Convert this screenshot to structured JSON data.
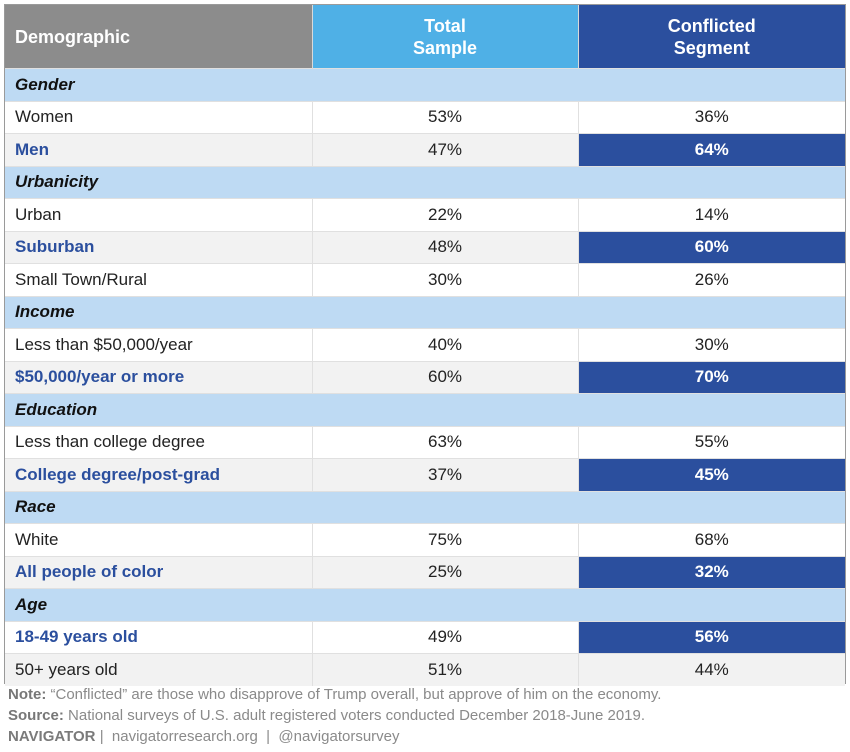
{
  "header": {
    "col1": "Demographic",
    "col2": "Total\nSample",
    "col3": "Conflicted\nSegment"
  },
  "groups": [
    {
      "category": "Gender",
      "rows": [
        {
          "label": "Women",
          "total": "53%",
          "conflicted": "36%",
          "highlight": false
        },
        {
          "label": "Men",
          "total": "47%",
          "conflicted": "64%",
          "highlight": true
        }
      ]
    },
    {
      "category": "Urbanicity",
      "rows": [
        {
          "label": "Urban",
          "total": "22%",
          "conflicted": "14%",
          "highlight": false
        },
        {
          "label": "Suburban",
          "total": "48%",
          "conflicted": "60%",
          "highlight": true
        },
        {
          "label": "Small Town/Rural",
          "total": "30%",
          "conflicted": "26%",
          "highlight": false
        }
      ]
    },
    {
      "category": "Income",
      "rows": [
        {
          "label": "Less than $50,000/year",
          "total": "40%",
          "conflicted": "30%",
          "highlight": false
        },
        {
          "label": "$50,000/year or more",
          "total": "60%",
          "conflicted": "70%",
          "highlight": true
        }
      ]
    },
    {
      "category": "Education",
      "rows": [
        {
          "label": "Less than college degree",
          "total": "63%",
          "conflicted": "55%",
          "highlight": false
        },
        {
          "label": "College degree/post-grad",
          "total": "37%",
          "conflicted": "45%",
          "highlight": true
        }
      ]
    },
    {
      "category": "Race",
      "rows": [
        {
          "label": "White",
          "total": "75%",
          "conflicted": "68%",
          "highlight": false
        },
        {
          "label": "All people of color",
          "total": "25%",
          "conflicted": "32%",
          "highlight": true
        }
      ]
    },
    {
      "category": "Age",
      "rows": [
        {
          "label": "18-49 years old",
          "total": "49%",
          "conflicted": "56%",
          "highlight": true
        },
        {
          "label": "50+ years old",
          "total": "51%",
          "conflicted": "44%",
          "highlight": false
        }
      ]
    }
  ],
  "footer": {
    "note_label": "Note:",
    "note_text": "“Conflicted” are those who disapprove of Trump overall, but approve of him on the economy.",
    "source_label": "Source:",
    "source_text": "National surveys of U.S. adult registered voters conducted December 2018-June 2019.",
    "brand": "NAVIGATOR",
    "links": "|  navigatorresearch.org  |  @navigatorsurvey"
  },
  "colors": {
    "header_gray": "#8c8c8c",
    "total_blue": "#4fb0e6",
    "conflicted_navy": "#2b4f9e",
    "category_band": "#bedaf3"
  },
  "chart_data": {
    "type": "table",
    "columns": [
      "Demographic",
      "Total Sample",
      "Conflicted Segment"
    ],
    "rows": [
      [
        "Gender",
        null,
        null
      ],
      [
        "Women",
        53,
        36
      ],
      [
        "Men",
        47,
        64
      ],
      [
        "Urbanicity",
        null,
        null
      ],
      [
        "Urban",
        22,
        14
      ],
      [
        "Suburban",
        48,
        60
      ],
      [
        "Small Town/Rural",
        30,
        26
      ],
      [
        "Income",
        null,
        null
      ],
      [
        "Less than $50,000/year",
        40,
        30
      ],
      [
        "$50,000/year or more",
        60,
        70
      ],
      [
        "Education",
        null,
        null
      ],
      [
        "Less than college degree",
        63,
        55
      ],
      [
        "College degree/post-grad",
        37,
        45
      ],
      [
        "Race",
        null,
        null
      ],
      [
        "White",
        75,
        68
      ],
      [
        "All people of color",
        25,
        32
      ],
      [
        "Age",
        null,
        null
      ],
      [
        "18-49 years old",
        49,
        56
      ],
      [
        "50+ years old",
        51,
        44
      ]
    ]
  }
}
